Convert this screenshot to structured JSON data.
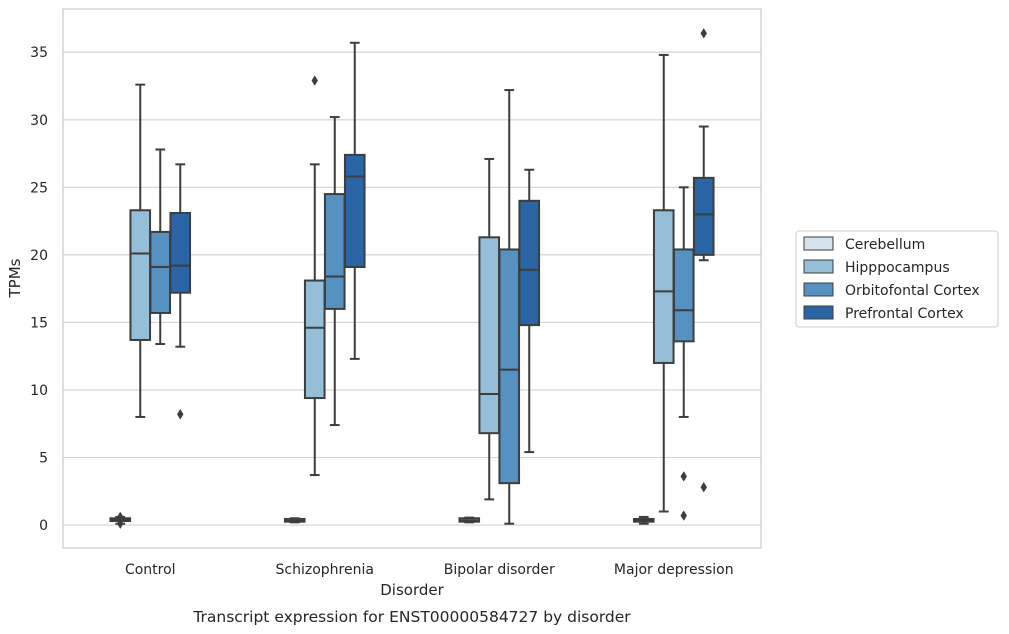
{
  "chart_data": {
    "type": "box",
    "caption": "Transcript expression for ENST00000584727 by disorder",
    "xlabel": "Disorder",
    "ylabel": "TPMs",
    "ylim": [
      -1.7,
      38.2
    ],
    "yticks": [
      0,
      5,
      10,
      15,
      20,
      25,
      30,
      35
    ],
    "grid": "horizontal",
    "legend_position": "right",
    "categories": [
      "Control",
      "Schizophrenia",
      "Bipolar disorder",
      "Major depression"
    ],
    "series": [
      {
        "name": "Cerebellum",
        "color": "#d5e3f0",
        "boxes": [
          {
            "whislo": 0.1,
            "q1": 0.3,
            "med": 0.4,
            "q3": 0.5,
            "whishi": 0.6,
            "fliers": [
              0.1,
              0.6
            ]
          },
          {
            "whislo": 0.2,
            "q1": 0.25,
            "med": 0.3,
            "q3": 0.45,
            "whishi": 0.5,
            "fliers": []
          },
          {
            "whislo": 0.2,
            "q1": 0.25,
            "med": 0.35,
            "q3": 0.5,
            "whishi": 0.55,
            "fliers": []
          },
          {
            "whislo": 0.1,
            "q1": 0.25,
            "med": 0.35,
            "q3": 0.45,
            "whishi": 0.6,
            "fliers": []
          }
        ]
      },
      {
        "name": "Hipppocampus",
        "color": "#95bfd9",
        "boxes": [
          {
            "whislo": 8.0,
            "q1": 13.7,
            "med": 20.1,
            "q3": 23.3,
            "whishi": 32.6,
            "fliers": []
          },
          {
            "whislo": 3.7,
            "q1": 9.4,
            "med": 14.6,
            "q3": 18.1,
            "whishi": 26.7,
            "fliers": [
              32.9
            ]
          },
          {
            "whislo": 1.9,
            "q1": 6.8,
            "med": 9.7,
            "q3": 21.3,
            "whishi": 27.1,
            "fliers": []
          },
          {
            "whislo": 1.0,
            "q1": 12.0,
            "med": 17.3,
            "q3": 23.3,
            "whishi": 34.8,
            "fliers": []
          }
        ]
      },
      {
        "name": "Orbitofontal Cortex",
        "color": "#5592c1",
        "boxes": [
          {
            "whislo": 13.4,
            "q1": 15.7,
            "med": 19.1,
            "q3": 21.7,
            "whishi": 27.8,
            "fliers": []
          },
          {
            "whislo": 7.4,
            "q1": 16.0,
            "med": 18.4,
            "q3": 24.5,
            "whishi": 30.2,
            "fliers": []
          },
          {
            "whislo": 0.1,
            "q1": 3.1,
            "med": 11.5,
            "q3": 20.4,
            "whishi": 32.2,
            "fliers": []
          },
          {
            "whislo": 8.0,
            "q1": 13.6,
            "med": 15.9,
            "q3": 20.4,
            "whishi": 25.0,
            "fliers": [
              3.6,
              0.7
            ]
          }
        ]
      },
      {
        "name": "Prefrontal Cortex",
        "color": "#2a66a6",
        "boxes": [
          {
            "whislo": 13.2,
            "q1": 17.2,
            "med": 19.2,
            "q3": 23.1,
            "whishi": 26.7,
            "fliers": [
              8.2
            ]
          },
          {
            "whislo": 12.3,
            "q1": 19.1,
            "med": 25.8,
            "q3": 27.4,
            "whishi": 35.7,
            "fliers": []
          },
          {
            "whislo": 5.4,
            "q1": 14.8,
            "med": 18.9,
            "q3": 24.0,
            "whishi": 26.3,
            "fliers": []
          },
          {
            "whislo": 19.6,
            "q1": 20.0,
            "med": 23.0,
            "q3": 25.7,
            "whishi": 29.5,
            "fliers": [
              2.8,
              36.4
            ]
          }
        ]
      }
    ]
  }
}
